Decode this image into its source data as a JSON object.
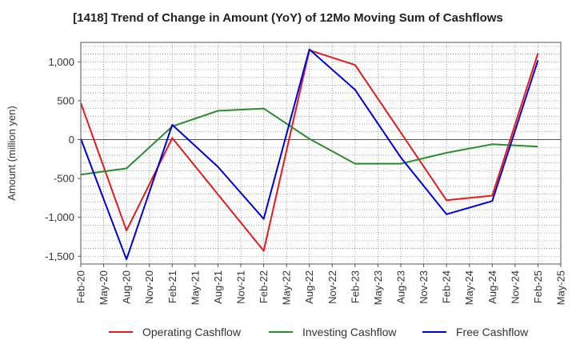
{
  "chart_data": {
    "type": "line",
    "title": "[1418]  Trend of Change in Amount (YoY) of 12Mo Moving Sum of Cashflows",
    "xlabel": "",
    "ylabel": "Amount (million yen)",
    "ylim": [
      -1600,
      1250
    ],
    "yticks": [
      -1500,
      -1000,
      -500,
      0,
      500,
      1000
    ],
    "ytick_labels": [
      "-1,500",
      "-1,000",
      "-500",
      "0",
      "500",
      "1,000"
    ],
    "categories": [
      "Feb-20",
      "May-20",
      "Aug-20",
      "Nov-20",
      "Feb-21",
      "May-21",
      "Aug-21",
      "Nov-21",
      "Feb-22",
      "May-22",
      "Aug-22",
      "Nov-22",
      "Feb-23",
      "May-23",
      "Aug-23",
      "Nov-23",
      "Feb-24",
      "May-24",
      "Aug-24",
      "Nov-24",
      "Feb-25",
      "May-25"
    ],
    "grid": true,
    "legend_position": "bottom",
    "series": [
      {
        "name": "Operating Cashflow",
        "color": "#e41a1c",
        "values": [
          470,
          null,
          -1170,
          null,
          20,
          null,
          null,
          null,
          -1430,
          null,
          1150,
          null,
          960,
          null,
          null,
          null,
          -780,
          null,
          -720,
          null,
          1110,
          null
        ]
      },
      {
        "name": "Investing Cashflow",
        "color": "#2e8b2e",
        "values": [
          -450,
          null,
          -370,
          null,
          170,
          null,
          370,
          null,
          400,
          null,
          10,
          null,
          -310,
          null,
          -310,
          null,
          -170,
          null,
          -60,
          null,
          -90,
          null
        ]
      },
      {
        "name": "Free Cashflow",
        "color": "#0000dd",
        "values": [
          10,
          null,
          -1540,
          null,
          190,
          null,
          -350,
          null,
          -1020,
          null,
          1160,
          null,
          640,
          null,
          -230,
          null,
          -960,
          null,
          -790,
          null,
          1020,
          null
        ]
      }
    ]
  }
}
